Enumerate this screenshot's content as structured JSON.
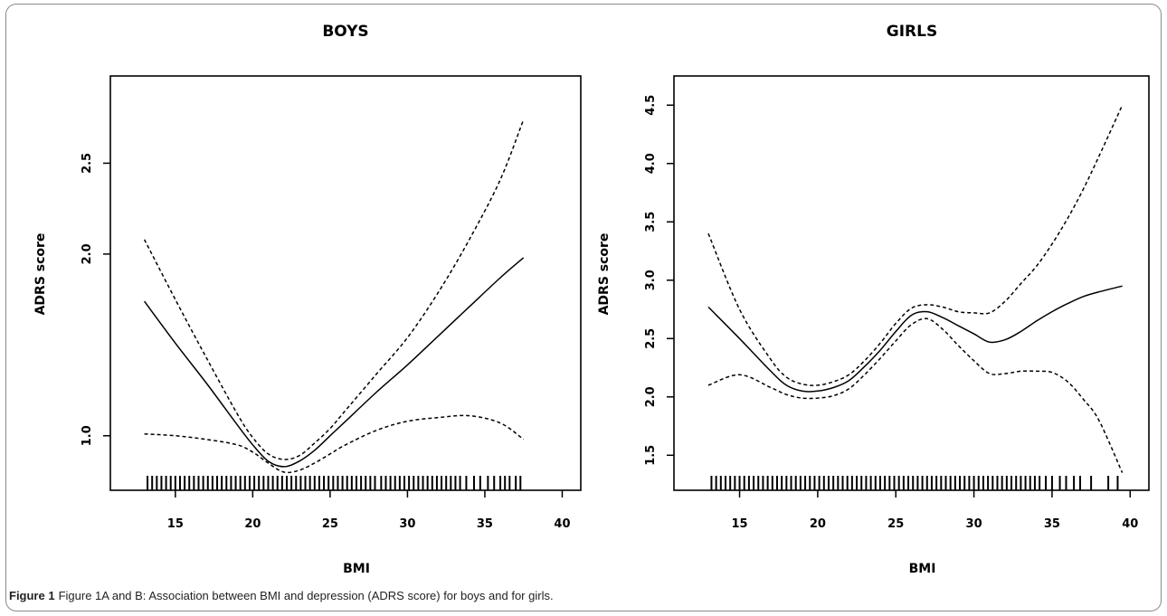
{
  "caption": {
    "label": "Figure 1",
    "text": "Figure 1A and B: Association between BMI and depression (ADRS score) for boys and for girls."
  },
  "chart_data": [
    {
      "type": "line",
      "title": "BOYS",
      "xlabel": "BMI",
      "ylabel": "ADRS score",
      "xlim": [
        10.8,
        41.2
      ],
      "ylim": [
        0.7,
        2.98
      ],
      "xticks": [
        15,
        20,
        25,
        30,
        35,
        40
      ],
      "xtick_labels": [
        "15",
        "20",
        "25",
        "30",
        "35",
        "40"
      ],
      "yticks": [
        1.0,
        2.0,
        2.5
      ],
      "ytick_labels": [
        "1.0",
        "2.0",
        "2.5"
      ],
      "grid": false,
      "legend": "none",
      "series": [
        {
          "style": "solid",
          "x": [
            13,
            15,
            17,
            19,
            20,
            21,
            22,
            23,
            24,
            25,
            26,
            28,
            30,
            32,
            34,
            36,
            37.5
          ],
          "y": [
            1.74,
            1.51,
            1.29,
            1.06,
            0.95,
            0.86,
            0.83,
            0.86,
            0.92,
            1.0,
            1.08,
            1.24,
            1.39,
            1.55,
            1.71,
            1.87,
            1.98
          ]
        },
        {
          "style": "dashed",
          "x": [
            13,
            15,
            17,
            19,
            20,
            21,
            22,
            23,
            24,
            25,
            26,
            28,
            30,
            32,
            34,
            36,
            37.5
          ],
          "y": [
            2.08,
            1.75,
            1.43,
            1.12,
            0.99,
            0.9,
            0.87,
            0.89,
            0.96,
            1.04,
            1.14,
            1.34,
            1.54,
            1.79,
            2.08,
            2.41,
            2.74
          ]
        },
        {
          "style": "dashed",
          "x": [
            13,
            15,
            17,
            19,
            20,
            21,
            22,
            23,
            24,
            25,
            26,
            28,
            30,
            32,
            34,
            36,
            37.5
          ],
          "y": [
            1.01,
            1.0,
            0.98,
            0.95,
            0.91,
            0.85,
            0.8,
            0.81,
            0.85,
            0.9,
            0.95,
            1.03,
            1.08,
            1.1,
            1.11,
            1.07,
            0.98
          ]
        }
      ],
      "rug": [
        13.2,
        13.5,
        13.8,
        14.1,
        14.4,
        14.7,
        15.0,
        15.3,
        15.6,
        15.9,
        16.2,
        16.5,
        16.8,
        17.1,
        17.4,
        17.7,
        18.0,
        18.3,
        18.6,
        18.9,
        19.2,
        19.5,
        19.8,
        20.1,
        20.4,
        20.7,
        21.0,
        21.3,
        21.6,
        21.9,
        22.2,
        22.5,
        22.8,
        23.1,
        23.4,
        23.7,
        24.0,
        24.3,
        24.6,
        24.9,
        25.2,
        25.5,
        25.8,
        26.1,
        26.4,
        26.7,
        27.0,
        27.3,
        27.6,
        27.9,
        28.3,
        28.6,
        28.9,
        29.2,
        29.5,
        29.8,
        30.1,
        30.4,
        30.7,
        31.0,
        31.3,
        31.6,
        31.9,
        32.2,
        32.5,
        32.8,
        33.1,
        33.4,
        33.8,
        34.3,
        34.7,
        35.2,
        35.6,
        36.0,
        36.3,
        36.6,
        37.0,
        37.3
      ]
    },
    {
      "type": "line",
      "title": "GIRLS",
      "xlabel": "BMI",
      "ylabel": "ADRS score",
      "xlim": [
        10.8,
        41.2
      ],
      "ylim": [
        1.2,
        4.75
      ],
      "xticks": [
        15,
        20,
        25,
        30,
        35,
        40
      ],
      "xtick_labels": [
        "15",
        "20",
        "25",
        "30",
        "35",
        "40"
      ],
      "yticks": [
        1.5,
        2.0,
        2.5,
        3.0,
        3.5,
        4.0,
        4.5
      ],
      "ytick_labels": [
        "1.5",
        "2.0",
        "2.5",
        "3.0",
        "3.5",
        "4.0",
        "4.5"
      ],
      "grid": false,
      "legend": "none",
      "series": [
        {
          "style": "solid",
          "x": [
            13,
            15,
            17,
            18,
            19,
            20,
            21,
            22,
            23,
            24,
            25,
            26,
            27,
            28,
            29,
            30,
            31,
            32,
            33,
            34,
            35,
            36,
            37,
            38,
            39.5
          ],
          "y": [
            2.77,
            2.5,
            2.22,
            2.1,
            2.05,
            2.05,
            2.08,
            2.14,
            2.26,
            2.4,
            2.56,
            2.7,
            2.73,
            2.68,
            2.61,
            2.54,
            2.47,
            2.49,
            2.56,
            2.65,
            2.73,
            2.8,
            2.86,
            2.9,
            2.95
          ]
        },
        {
          "style": "dashed",
          "x": [
            13,
            15,
            17,
            18,
            19,
            20,
            21,
            22,
            23,
            24,
            25,
            26,
            27,
            28,
            29,
            30,
            31,
            32,
            33,
            34,
            35,
            36,
            37,
            38,
            39.5
          ],
          "y": [
            3.4,
            2.75,
            2.32,
            2.17,
            2.11,
            2.1,
            2.13,
            2.19,
            2.31,
            2.46,
            2.63,
            2.76,
            2.79,
            2.77,
            2.73,
            2.72,
            2.72,
            2.82,
            2.97,
            3.12,
            3.31,
            3.53,
            3.78,
            4.06,
            4.5
          ]
        },
        {
          "style": "dashed",
          "x": [
            13,
            15,
            17,
            18,
            19,
            20,
            21,
            22,
            23,
            24,
            25,
            26,
            27,
            28,
            29,
            30,
            31,
            32,
            33,
            34,
            35,
            36,
            37,
            38,
            39.5
          ],
          "y": [
            2.1,
            2.19,
            2.08,
            2.02,
            1.99,
            1.99,
            2.01,
            2.07,
            2.19,
            2.33,
            2.48,
            2.62,
            2.67,
            2.58,
            2.44,
            2.31,
            2.2,
            2.2,
            2.22,
            2.22,
            2.21,
            2.13,
            1.98,
            1.8,
            1.35
          ]
        }
      ],
      "rug": [
        13.2,
        13.5,
        13.8,
        14.1,
        14.4,
        14.7,
        15.0,
        15.3,
        15.6,
        15.9,
        16.2,
        16.5,
        16.8,
        17.1,
        17.4,
        17.7,
        18.0,
        18.3,
        18.6,
        18.9,
        19.2,
        19.5,
        19.8,
        20.1,
        20.4,
        20.7,
        21.0,
        21.3,
        21.6,
        21.9,
        22.2,
        22.5,
        22.8,
        23.1,
        23.4,
        23.7,
        24.0,
        24.3,
        24.6,
        24.9,
        25.2,
        25.5,
        25.8,
        26.1,
        26.4,
        26.7,
        27.0,
        27.3,
        27.6,
        27.9,
        28.2,
        28.5,
        28.8,
        29.1,
        29.4,
        29.7,
        30.0,
        30.3,
        30.6,
        30.9,
        31.2,
        31.5,
        31.8,
        32.1,
        32.4,
        32.7,
        33.0,
        33.3,
        33.6,
        33.9,
        34.2,
        34.6,
        35.0,
        35.5,
        35.9,
        36.4,
        36.8,
        37.5,
        38.6,
        39.2
      ]
    }
  ]
}
